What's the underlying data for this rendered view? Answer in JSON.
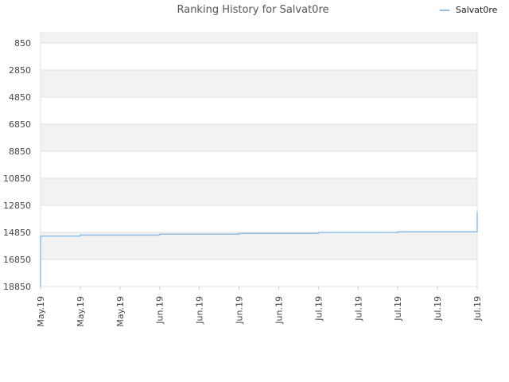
{
  "chart_data": {
    "type": "line",
    "title": "Ranking History for Salvat0re",
    "xlabel": "",
    "ylabel": "",
    "y_inverted": true,
    "ylim": [
      850,
      18850
    ],
    "yticks": [
      850,
      2850,
      4850,
      6850,
      8850,
      10850,
      12850,
      14850,
      16850,
      18850
    ],
    "xlim": [
      "2019-05-17",
      "2019-07-22"
    ],
    "xticks": [
      {
        "date": "2019-05-17",
        "label": "May.19"
      },
      {
        "date": "2019-05-23",
        "label": "May.19"
      },
      {
        "date": "2019-05-29",
        "label": "May.19"
      },
      {
        "date": "2019-06-04",
        "label": "Jun.19"
      },
      {
        "date": "2019-06-10",
        "label": "Jun.19"
      },
      {
        "date": "2019-06-16",
        "label": "Jun.19"
      },
      {
        "date": "2019-06-22",
        "label": "Jun.19"
      },
      {
        "date": "2019-06-28",
        "label": "Jul.19"
      },
      {
        "date": "2019-07-04",
        "label": "Jul.19"
      },
      {
        "date": "2019-07-10",
        "label": "Jul.19"
      },
      {
        "date": "2019-07-16",
        "label": "Jul.19"
      },
      {
        "date": "2019-07-22",
        "label": "Jul.19"
      }
    ],
    "grid": true,
    "legend_position": "top-right",
    "series": [
      {
        "name": "Salvat0re",
        "color": "#90c0e8",
        "step": true,
        "points": [
          {
            "x": "2019-05-17",
            "y": 18850
          },
          {
            "x": "2019-05-17",
            "y": 15120
          },
          {
            "x": "2019-05-23",
            "y": 15050
          },
          {
            "x": "2019-06-04",
            "y": 14980
          },
          {
            "x": "2019-06-16",
            "y": 14920
          },
          {
            "x": "2019-06-28",
            "y": 14860
          },
          {
            "x": "2019-07-10",
            "y": 14800
          },
          {
            "x": "2019-07-22",
            "y": 14740
          },
          {
            "x": "2019-07-22",
            "y": 13350
          }
        ]
      }
    ]
  },
  "colors": {
    "band": "#f2f2f2",
    "grid": "#e0e0e0",
    "line": "#90c0e8"
  }
}
